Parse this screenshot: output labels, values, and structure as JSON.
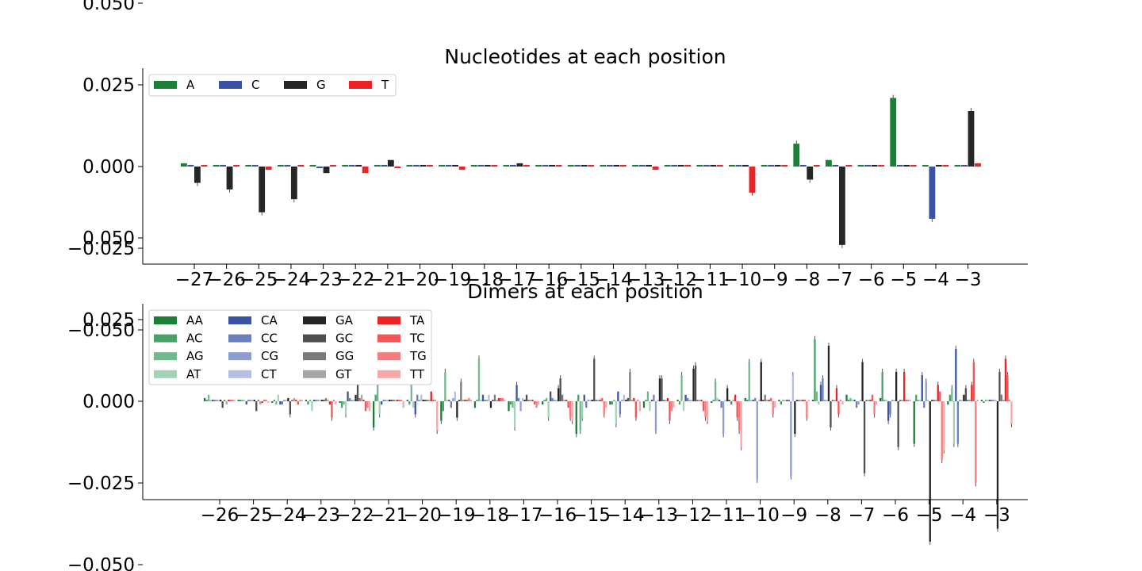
{
  "chart_data": [
    {
      "type": "bar",
      "title": "Nucleotides at each position",
      "xlabel": "",
      "ylabel": "",
      "ylim": [
        -0.06,
        0.06
      ],
      "yticks": [
        "0.050",
        "0.025",
        "0.000",
        "−0.025",
        "−0.050"
      ],
      "ytick_values": [
        0.05,
        0.025,
        0.0,
        -0.025,
        -0.05
      ],
      "categories": [
        "−27",
        "−26",
        "−25",
        "−24",
        "−23",
        "−22",
        "−21",
        "−20",
        "−19",
        "−18",
        "−17",
        "−16",
        "−15",
        "−14",
        "−13",
        "−12",
        "−11",
        "−10",
        "−9",
        "−8",
        "−7",
        "−6",
        "−5",
        "−4",
        "−3"
      ],
      "legend_placement": "top-left",
      "legend_ncol": 4,
      "series": [
        {
          "name": "A",
          "color": "#1a7f37",
          "values": [
            0.001,
            0.0005,
            0.0005,
            0.0005,
            0.0005,
            0.0005,
            0.0005,
            0.0005,
            0.0005,
            0.0005,
            0.0005,
            0.0005,
            0.0005,
            0.0005,
            0.0005,
            0.0005,
            0.0005,
            0.0005,
            0.0005,
            0.007,
            0.002,
            0.0005,
            0.021,
            0.0005,
            0.0005
          ]
        },
        {
          "name": "C",
          "color": "#3a53a4",
          "values": [
            0.0005,
            0.0005,
            0.0005,
            0.0005,
            -0.0005,
            0.0005,
            0.0005,
            0.0005,
            0.0005,
            0.0005,
            0.0005,
            0.0005,
            0.0005,
            0.0005,
            0.0005,
            0.0005,
            0.0005,
            0.0005,
            0.0005,
            0.0005,
            0.0005,
            0.0005,
            0.0005,
            -0.016,
            0.0005
          ]
        },
        {
          "name": "G",
          "color": "#262626",
          "values": [
            -0.005,
            -0.007,
            -0.014,
            -0.01,
            -0.002,
            0.0005,
            0.002,
            0.0005,
            0.0005,
            0.0005,
            0.001,
            0.0005,
            0.0005,
            0.0005,
            0.0005,
            0.0005,
            0.0005,
            0.0005,
            0.0005,
            -0.004,
            -0.024,
            0.0005,
            0.0005,
            0.0005,
            0.017
          ]
        },
        {
          "name": "T",
          "color": "#ed2224",
          "values": [
            0.0005,
            0.0005,
            -0.001,
            0.0005,
            0.0005,
            -0.002,
            -0.0005,
            0.0005,
            -0.001,
            0.0005,
            0.0005,
            0.0005,
            0.0005,
            0.0005,
            -0.001,
            0.0005,
            0.0005,
            -0.008,
            0.0005,
            0.0005,
            0.0005,
            0.0005,
            0.0005,
            0.0005,
            0.001
          ]
        }
      ]
    },
    {
      "type": "bar",
      "title": "Dimers at each position",
      "xlabel": "",
      "ylabel": "",
      "ylim": [
        -0.06,
        0.06
      ],
      "yticks": [
        "0.050",
        "0.025",
        "0.000",
        "−0.025",
        "−0.050"
      ],
      "ytick_values": [
        0.05,
        0.025,
        0.0,
        -0.025,
        -0.05
      ],
      "categories": [
        "−26",
        "−25",
        "−24",
        "−23",
        "−22",
        "−21",
        "−20",
        "−19",
        "−18",
        "−17",
        "−16",
        "−15",
        "−14",
        "−13",
        "−12",
        "−11",
        "−10",
        "−9",
        "−8",
        "−7",
        "−6",
        "−5",
        "−4",
        "−3"
      ],
      "legend_placement": "top-left",
      "legend_ncol": 4,
      "series": [
        {
          "name": "AA",
          "color": "#1a7f37",
          "values": [
            0.001,
            0.0005,
            -0.0005,
            0.0005,
            -0.0005,
            -0.008,
            0.0005,
            -0.006,
            -0.002,
            -0.003,
            -0.001,
            -0.01,
            -0.001,
            -0.002,
            0.0005,
            -0.0005,
            0.001,
            0.0005,
            0.0005,
            0.002,
            0.001,
            -0.013,
            -0.001,
            0.0005
          ]
        },
        {
          "name": "AC",
          "color": "#48a06a",
          "values": [
            0.0005,
            0.0005,
            0.0005,
            -0.001,
            -0.002,
            0.002,
            -0.001,
            -0.003,
            0.0005,
            -0.001,
            0.0005,
            0.002,
            -0.001,
            0.0005,
            -0.001,
            0.0005,
            0.0005,
            -0.001,
            0.019,
            0.0005,
            0.009,
            0.002,
            0.002,
            -0.0005
          ]
        },
        {
          "name": "AG",
          "color": "#72b88e",
          "values": [
            0.002,
            0.0005,
            -0.001,
            0.0005,
            -0.001,
            0.009,
            0.008,
            0.009,
            0.013,
            -0.002,
            0.001,
            -0.009,
            0.0005,
            0.003,
            0.008,
            0.006,
            0.012,
            0.0005,
            0.003,
            0.001,
            0.0005,
            0.0005,
            0.004,
            0.0005
          ]
        },
        {
          "name": "AT",
          "color": "#a3d3b4",
          "values": [
            0.0005,
            0.0005,
            0.002,
            -0.003,
            -0.004,
            -0.004,
            -0.002,
            0.0005,
            0.0005,
            -0.008,
            -0.005,
            -0.005,
            -0.007,
            -0.003,
            -0.003,
            0.001,
            0.0005,
            0.0005,
            -0.001,
            0.0005,
            0.0005,
            0.0005,
            -0.013,
            0.0005
          ]
        },
        {
          "name": "CA",
          "color": "#3a53a4",
          "values": [
            0.0005,
            -0.001,
            -0.001,
            0.0005,
            0.003,
            -0.001,
            -0.004,
            0.0005,
            0.002,
            0.005,
            0.003,
            0.002,
            0.003,
            0.0005,
            0.002,
            0.0005,
            0.0005,
            0.0005,
            0.005,
            0.0005,
            -0.006,
            0.008,
            0.016,
            0.0005
          ]
        },
        {
          "name": "CC",
          "color": "#6b7fbd",
          "values": [
            0.0005,
            0.0005,
            -0.001,
            0.0005,
            0.001,
            0.0005,
            0.002,
            -0.002,
            0.0005,
            0.001,
            0.001,
            -0.002,
            -0.004,
            0.002,
            0.001,
            -0.002,
            0.001,
            0.0005,
            0.007,
            -0.002,
            -0.004,
            -0.002,
            -0.013,
            0.0005
          ]
        },
        {
          "name": "CG",
          "color": "#8e9dcf",
          "values": [
            0.0005,
            0.0005,
            0.0005,
            0.0005,
            0.0005,
            0.0005,
            0.0005,
            0.001,
            0.0005,
            -0.003,
            0.0005,
            0.0005,
            0.0005,
            -0.009,
            0.0005,
            -0.01,
            -0.024,
            -0.023,
            0.0005,
            -0.001,
            0.0005,
            0.006,
            0.0005,
            0.0005
          ]
        },
        {
          "name": "CT",
          "color": "#b4bfe1",
          "values": [
            0.0005,
            0.0005,
            0.0005,
            0.0005,
            0.0005,
            0.0005,
            0.002,
            0.003,
            0.002,
            0.001,
            0.0005,
            0.0005,
            0.002,
            0.0005,
            0.0005,
            0.0005,
            0.0005,
            0.008,
            0.0005,
            0.0005,
            0.0005,
            0.0005,
            0.0005,
            0.0005
          ]
        },
        {
          "name": "GA",
          "color": "#262626",
          "values": [
            0.0005,
            0.0005,
            0.001,
            0.0005,
            0.002,
            0.0005,
            0.0005,
            -0.005,
            -0.002,
            0.0005,
            0.004,
            0.0005,
            0.0005,
            0.007,
            0.01,
            0.004,
            0.012,
            -0.01,
            0.017,
            0.012,
            0.009,
            -0.043,
            0.002,
            -0.039
          ]
        },
        {
          "name": "GC",
          "color": "#4f4f4f",
          "values": [
            -0.002,
            -0.003,
            -0.004,
            0.0005,
            0.005,
            0.0005,
            0.0005,
            0.0005,
            0.0005,
            0.002,
            0.007,
            0.013,
            0.001,
            0.007,
            0.011,
            0.0005,
            0.0005,
            0.0005,
            -0.008,
            -0.022,
            -0.014,
            0.0005,
            0.004,
            0.009
          ]
        },
        {
          "name": "GG",
          "color": "#7a7a7a",
          "values": [
            0.0005,
            0.0005,
            0.0005,
            0.001,
            0.001,
            0.0005,
            0.0005,
            0.006,
            0.002,
            0.0005,
            0.002,
            0.0005,
            0.009,
            0.0005,
            0.0005,
            -0.001,
            0.002,
            0.0005,
            0.0005,
            0.0005,
            0.0005,
            0.0005,
            0.0005,
            0.002
          ]
        },
        {
          "name": "GT",
          "color": "#a6a6a6",
          "values": [
            -0.001,
            -0.001,
            0.001,
            0.0005,
            0.002,
            0.0005,
            0.0005,
            0.0005,
            0.0005,
            0.0005,
            0.0005,
            0.0005,
            0.0005,
            0.0005,
            0.0005,
            0.0005,
            0.0005,
            0.0005,
            0.0005,
            0.0005,
            0.0005,
            0.0005,
            0.0005,
            0.0005
          ]
        },
        {
          "name": "TA",
          "color": "#ed2224",
          "values": [
            0.0005,
            -0.0005,
            0.0005,
            -0.001,
            0.0005,
            0.0005,
            0.003,
            0.0005,
            0.001,
            0.0005,
            0.0005,
            0.0005,
            0.001,
            0.001,
            0.0005,
            0.002,
            0.0005,
            0.0005,
            0.004,
            0.0005,
            0.009,
            0.005,
            0.005,
            0.013
          ]
        },
        {
          "name": "TC",
          "color": "#f15556",
          "values": [
            0.0005,
            0.0005,
            -0.001,
            -0.005,
            -0.003,
            0.0005,
            0.0005,
            0.0005,
            0.001,
            -0.001,
            -0.002,
            0.001,
            -0.005,
            -0.006,
            -0.003,
            -0.005,
            0.001,
            0.0005,
            -0.004,
            0.002,
            0.0005,
            0.003,
            0.012,
            0.008
          ]
        },
        {
          "name": "TG",
          "color": "#f47c7e",
          "values": [
            0.0005,
            0.0005,
            0.0005,
            0.0005,
            -0.002,
            0.0005,
            0.0005,
            0.001,
            0.001,
            -0.002,
            -0.005,
            -0.004,
            0.0005,
            -0.003,
            -0.005,
            -0.009,
            -0.004,
            -0.005,
            0.0005,
            -0.004,
            0.0005,
            -0.018,
            -0.025,
            0.0005
          ]
        },
        {
          "name": "TT",
          "color": "#f4a8a8",
          "values": [
            0.0005,
            -0.0005,
            0.0005,
            -0.001,
            -0.003,
            -0.002,
            -0.009,
            0.0005,
            0.0005,
            -0.001,
            -0.006,
            -0.002,
            -0.003,
            -0.002,
            -0.006,
            -0.014,
            -0.002,
            0.0005,
            -0.001,
            -0.001,
            0.0005,
            -0.015,
            0.0005,
            -0.007
          ]
        }
      ]
    }
  ]
}
